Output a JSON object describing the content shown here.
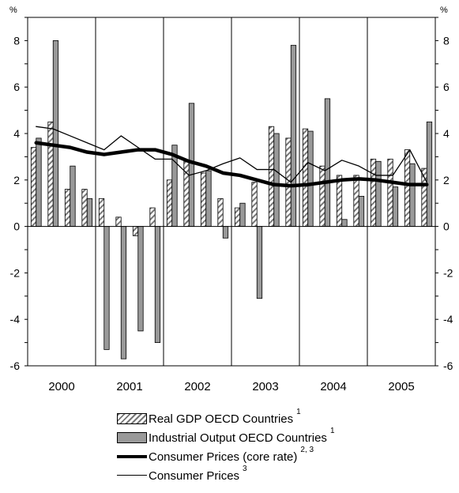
{
  "chart_data": {
    "type": "bar",
    "unit_label_left": "%",
    "unit_label_right": "%",
    "ylim": [
      -6,
      9
    ],
    "yticks": [
      -6,
      -4,
      -2,
      0,
      2,
      4,
      6,
      8
    ],
    "years": [
      "2000",
      "2001",
      "2002",
      "2003",
      "2004",
      "2005"
    ],
    "quarters_per_year": 4,
    "series": [
      {
        "name": "Real GDP OECD Countries",
        "footnote": "1",
        "kind": "bar",
        "style": "hatched",
        "values": [
          3.4,
          4.5,
          1.6,
          1.6,
          1.2,
          0.4,
          -0.4,
          0.8,
          2.0,
          2.8,
          2.3,
          1.2,
          0.8,
          1.9,
          4.3,
          3.8,
          4.2,
          2.6,
          2.2,
          2.2,
          2.9,
          2.9,
          3.3,
          2.5
        ]
      },
      {
        "name": "Industrial Output OECD Countries",
        "footnote": "1",
        "kind": "bar",
        "style": "gray",
        "values": [
          3.8,
          8.0,
          2.6,
          1.2,
          -5.3,
          -5.7,
          -4.5,
          -5.0,
          3.5,
          5.3,
          2.4,
          -0.5,
          1.0,
          -3.1,
          4.0,
          7.8,
          4.1,
          5.5,
          0.3,
          1.3,
          2.8,
          1.7,
          2.7,
          4.5
        ]
      },
      {
        "name": "Consumer Prices (core rate)",
        "footnote": "2, 3",
        "kind": "line",
        "style": "thick",
        "values": [
          3.6,
          3.5,
          3.4,
          3.2,
          3.1,
          3.2,
          3.3,
          3.3,
          3.1,
          2.8,
          2.6,
          2.3,
          2.2,
          2.0,
          1.8,
          1.75,
          1.8,
          1.9,
          2.0,
          2.05,
          2.0,
          1.9,
          1.8,
          1.8
        ]
      },
      {
        "name": "Consumer Prices",
        "footnote": "3",
        "kind": "line",
        "style": "thin",
        "values": [
          4.3,
          4.2,
          3.9,
          3.6,
          3.3,
          3.9,
          3.4,
          2.9,
          2.9,
          2.2,
          2.4,
          2.7,
          2.95,
          2.45,
          2.45,
          1.9,
          2.75,
          2.4,
          2.85,
          2.6,
          2.2,
          2.2,
          3.3,
          1.9
        ]
      }
    ]
  }
}
